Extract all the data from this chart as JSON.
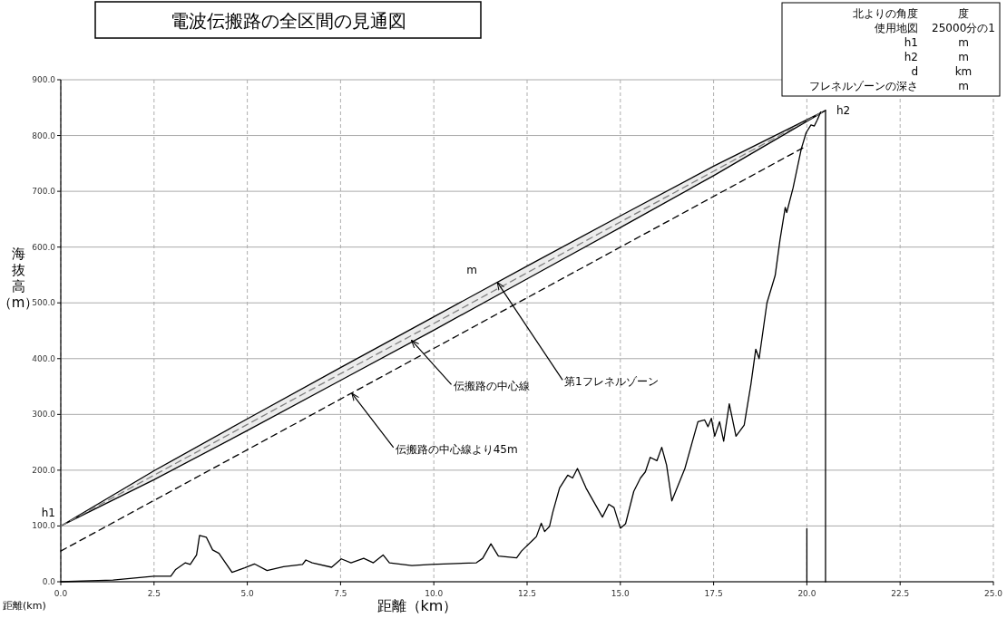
{
  "chart_data": {
    "type": "line",
    "title": "電波伝搬路の全区間の見通図",
    "xlabel": "距離（km）",
    "ylabel": "海抜高（m）",
    "xlim": [
      0,
      25
    ],
    "ylim": [
      0,
      900
    ],
    "xticks": [
      {
        "value": 0,
        "label": "0.0"
      },
      {
        "value": 2.5,
        "label": "2.5"
      },
      {
        "value": 5,
        "label": "5.0"
      },
      {
        "value": 7.5,
        "label": "7.5"
      },
      {
        "value": 10,
        "label": "10.0"
      },
      {
        "value": 12.5,
        "label": "12.5"
      },
      {
        "value": 15,
        "label": "15.0"
      },
      {
        "value": 17.5,
        "label": "17.5"
      },
      {
        "value": 20,
        "label": "20.0"
      },
      {
        "value": 22.5,
        "label": "22.5"
      },
      {
        "value": 25,
        "label": "25.0"
      }
    ],
    "yticks": [
      {
        "value": 0,
        "label": "0.0"
      },
      {
        "value": 100,
        "label": "100.0"
      },
      {
        "value": 200,
        "label": "200.0"
      },
      {
        "value": 300,
        "label": "300.0"
      },
      {
        "value": 400,
        "label": "400.0"
      },
      {
        "value": 500,
        "label": "500.0"
      },
      {
        "value": 600,
        "label": "600.0"
      },
      {
        "value": 700,
        "label": "700.0"
      },
      {
        "value": 800,
        "label": "800.0"
      },
      {
        "value": 900,
        "label": "900.0"
      }
    ],
    "grid": true,
    "series": [
      {
        "color": "#808080",
        "line_style": "dashed",
        "x": [
          0,
          2.5,
          5,
          7.5,
          10,
          12.5,
          15,
          17.5,
          20.5
        ],
        "values": [
          100,
          191,
          282,
          373,
          463,
          554,
          645,
          736,
          845
        ],
        "lower": [
          100,
          183,
          271,
          361,
          451,
          543,
          635,
          728,
          845
        ],
        "upper": [
          100,
          199,
          292,
          384,
          475,
          566,
          656,
          745,
          845
        ]
      },
      {
        "color": "#000000",
        "line_style": "dashed",
        "x": [
          0,
          19.9
        ],
        "values": [
          55,
          778
        ]
      },
      {
        "color": "#000000",
        "line_style": "solid",
        "x": [
          0,
          1.4,
          2.5,
          2.95,
          3.08,
          3.34,
          3.47,
          3.64,
          3.72,
          3.9,
          4.07,
          4.24,
          4.59,
          4.93,
          5.19,
          5.53,
          5.97,
          6.48,
          6.57,
          6.74,
          7.26,
          7.52,
          7.78,
          8.12,
          8.38,
          8.64,
          8.81,
          9.41,
          9.93,
          11.14,
          11.31,
          11.53,
          11.73,
          12.22,
          12.35,
          12.66,
          12.75,
          12.88,
          12.97,
          13.1,
          13.19,
          13.37,
          13.59,
          13.72,
          13.85,
          14.08,
          14.3,
          14.52,
          14.69,
          14.83,
          15.0,
          15.14,
          15.36,
          15.54,
          15.67,
          15.8,
          15.98,
          16.11,
          16.24,
          16.38,
          16.73,
          17.08,
          17.26,
          17.35,
          17.44,
          17.53,
          17.66,
          17.77,
          17.92,
          18.1,
          18.32,
          18.5,
          18.63,
          18.72,
          18.93,
          19.15,
          19.28,
          19.42,
          19.46,
          19.63,
          19.85,
          19.98,
          20.11,
          20.2,
          20.28,
          20.37
        ],
        "values": [
          0,
          3,
          10,
          10,
          22,
          34,
          31,
          48,
          83,
          80,
          57,
          51,
          17,
          25,
          32,
          20,
          27,
          31,
          39,
          34,
          26,
          41,
          34,
          42,
          34,
          48,
          34,
          29,
          31,
          34,
          42,
          68,
          46,
          43,
          55,
          75,
          81,
          105,
          90,
          99,
          125,
          168,
          191,
          186,
          203,
          168,
          142,
          116,
          139,
          133,
          96,
          104,
          162,
          186,
          197,
          223,
          217,
          241,
          209,
          145,
          203,
          287,
          290,
          278,
          293,
          261,
          287,
          252,
          319,
          261,
          281,
          354,
          417,
          400,
          500,
          549,
          613,
          671,
          662,
          706,
          776,
          805,
          819,
          817,
          828,
          842
        ]
      },
      {
        "color": "#000000",
        "line_style": "solid",
        "x": [
          20.5,
          20.5
        ],
        "values": [
          0,
          845
        ]
      },
      {
        "color": "#000000",
        "line_style": "solid",
        "x": [
          20,
          20
        ],
        "values": [
          0,
          95
        ]
      }
    ],
    "annotations": [
      {
        "text": "h1",
        "x": 0,
        "y": 100
      },
      {
        "text": "h2",
        "x": 20.5,
        "y": 845
      },
      {
        "text": "第1フレネルゾーン",
        "x": 11.7,
        "y": 537
      },
      {
        "text": "伝搬路の中心線",
        "x": 9.4,
        "y": 433
      },
      {
        "text": "伝搬路の中心線より45m",
        "x": 7.8,
        "y": 338
      },
      "距離(km)",
      "m",
      "北よりの角度",
      "度",
      "使用地図",
      "25000分の1",
      "h1",
      "m",
      "h2",
      "m",
      "d",
      "km",
      "フレネルゾーンの深さ",
      "m"
    ]
  }
}
